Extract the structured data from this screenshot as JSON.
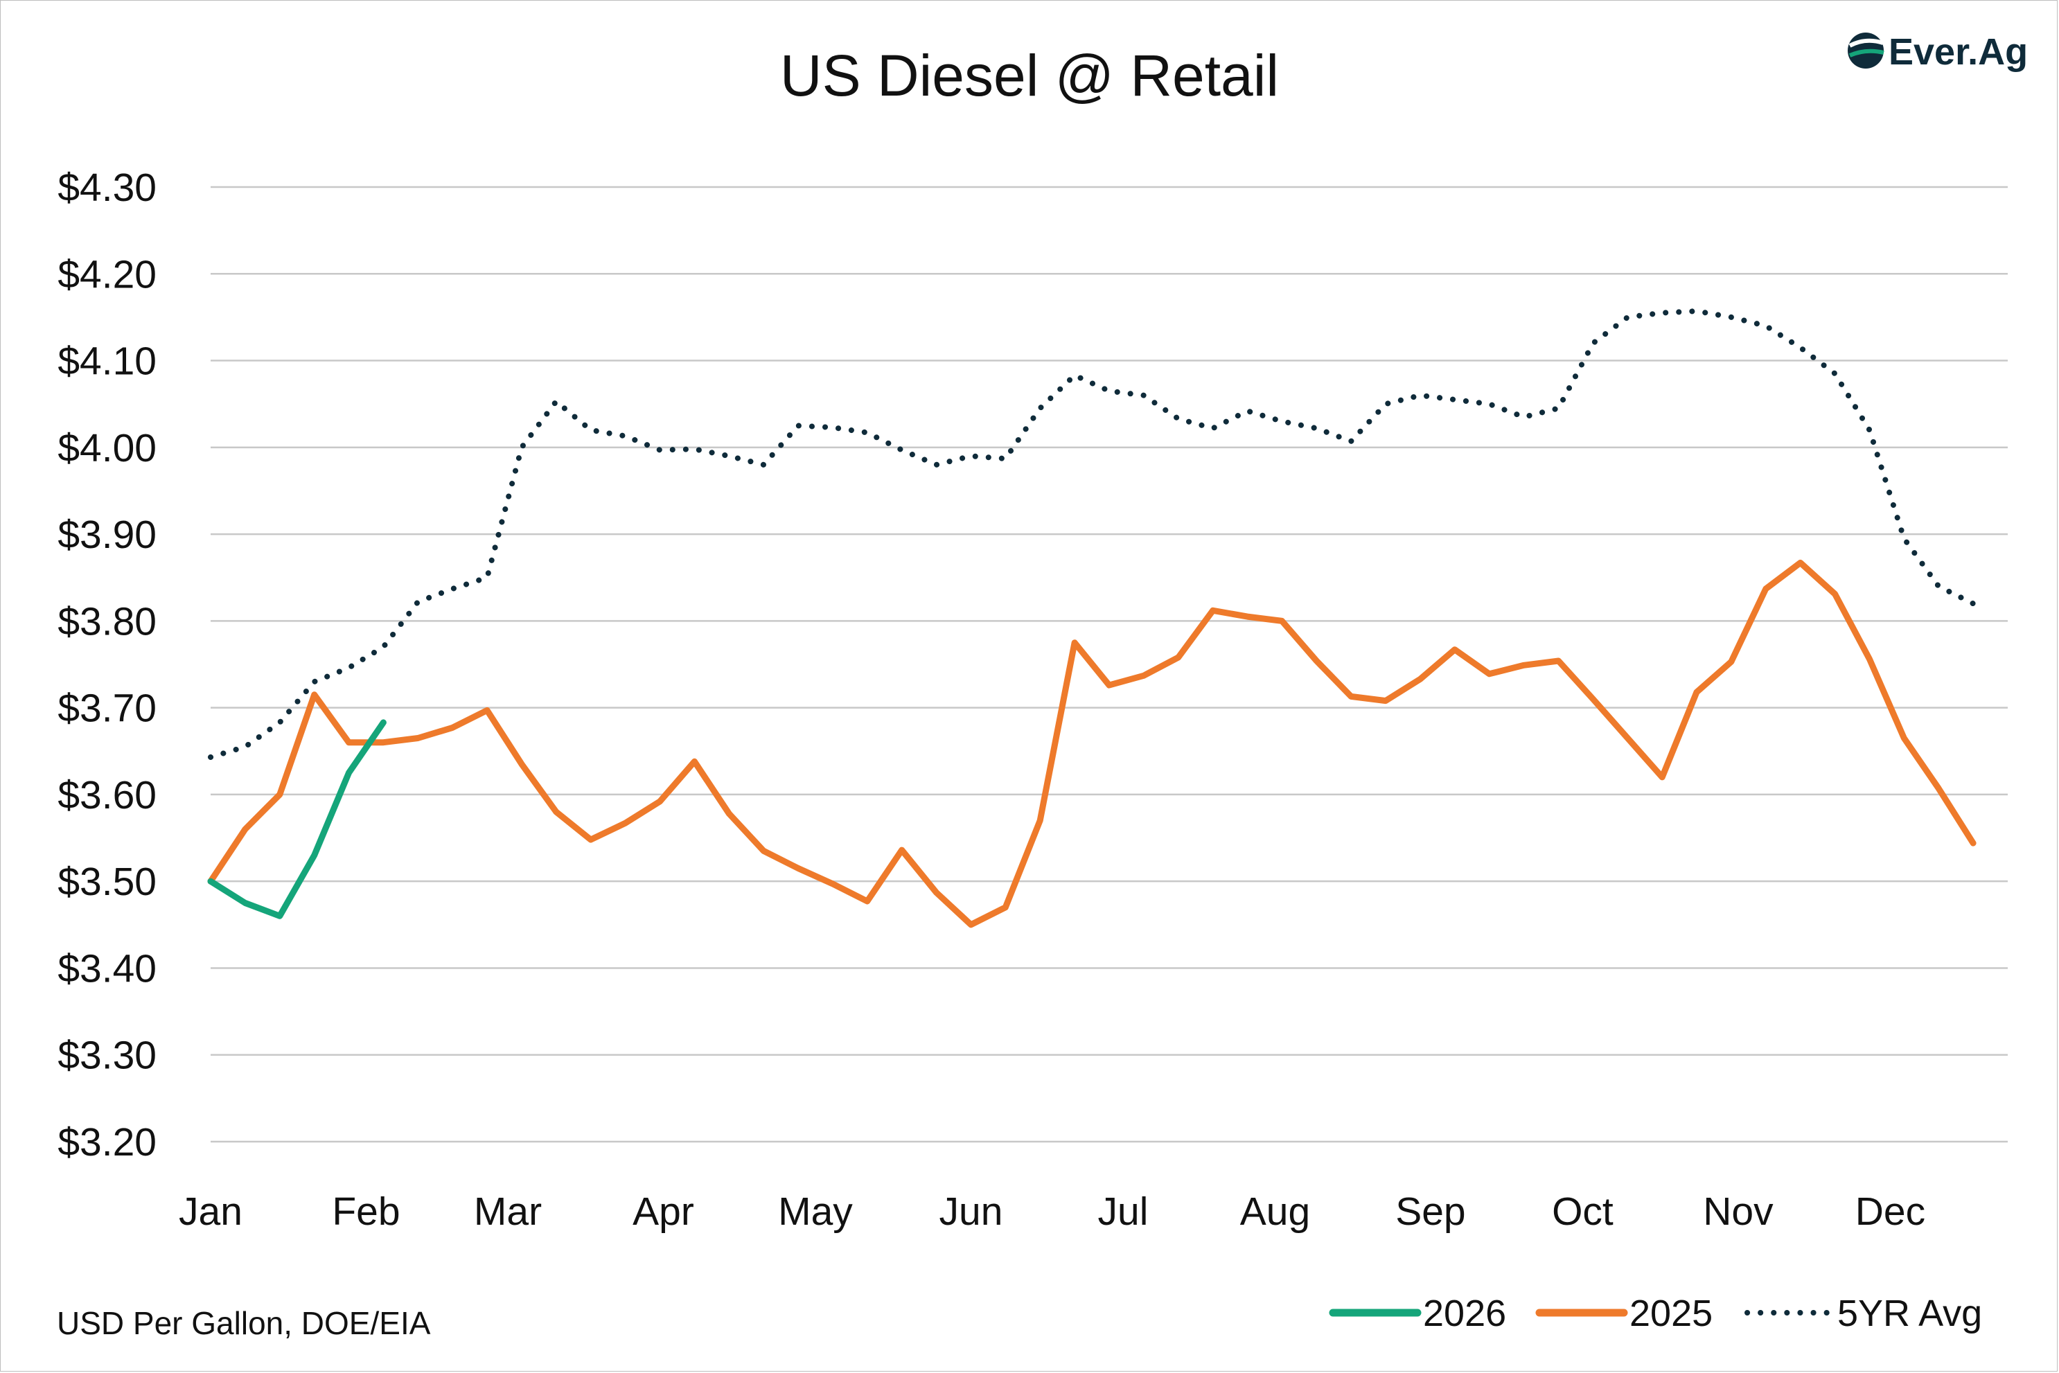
{
  "logo": {
    "text": "Ever.Ag",
    "colors": {
      "dark": "#0f2b3a",
      "green": "#15a57a"
    }
  },
  "source_note": "USD Per Gallon, DOE/EIA",
  "chart_data": {
    "type": "line",
    "title": "US Diesel @ Retail",
    "xlabel": "",
    "ylabel": "",
    "ylim": [
      3.2,
      4.3
    ],
    "yticks": [
      {
        "value": 4.3,
        "label": "$4.30"
      },
      {
        "value": 4.2,
        "label": "$4.20"
      },
      {
        "value": 4.1,
        "label": "$4.10"
      },
      {
        "value": 4.0,
        "label": "$4.00"
      },
      {
        "value": 3.9,
        "label": "$3.90"
      },
      {
        "value": 3.8,
        "label": "$3.80"
      },
      {
        "value": 3.7,
        "label": "$3.70"
      },
      {
        "value": 3.6,
        "label": "$3.60"
      },
      {
        "value": 3.5,
        "label": "$3.50"
      },
      {
        "value": 3.4,
        "label": "$3.40"
      },
      {
        "value": 3.3,
        "label": "$3.30"
      },
      {
        "value": 3.2,
        "label": "$3.20"
      }
    ],
    "x_axis": {
      "unit": "week of year",
      "range": [
        1,
        53
      ],
      "months": [
        {
          "label": "Jan",
          "week": 1
        },
        {
          "label": "Feb",
          "week": 5.5
        },
        {
          "label": "Mar",
          "week": 9.6
        },
        {
          "label": "Apr",
          "week": 14.1
        },
        {
          "label": "May",
          "week": 18.5
        },
        {
          "label": "Jun",
          "week": 23.0
        },
        {
          "label": "Jul",
          "week": 27.4
        },
        {
          "label": "Aug",
          "week": 31.8
        },
        {
          "label": "Sep",
          "week": 36.3
        },
        {
          "label": "Oct",
          "week": 40.7
        },
        {
          "label": "Nov",
          "week": 45.2
        },
        {
          "label": "Dec",
          "week": 49.6
        }
      ]
    },
    "grid": true,
    "legend": "bottom-right",
    "series": [
      {
        "name": "2026",
        "color": "#15a57a",
        "style": "solid",
        "values": [
          3.5,
          3.475,
          3.46,
          3.53,
          3.625,
          3.683
        ]
      },
      {
        "name": "2025",
        "color": "#ee7a2b",
        "style": "solid",
        "values": [
          3.5,
          3.56,
          3.6,
          3.715,
          3.66,
          3.66,
          3.665,
          3.677,
          3.697,
          3.635,
          3.58,
          3.548,
          3.567,
          3.592,
          3.638,
          3.578,
          3.535,
          3.515,
          3.497,
          3.477,
          3.536,
          3.487,
          3.45,
          3.47,
          3.57,
          3.775,
          3.726,
          3.737,
          3.758,
          3.812,
          3.805,
          3.8,
          3.754,
          3.713,
          3.708,
          3.733,
          3.767,
          3.739,
          3.749,
          3.754,
          3.71,
          3.665,
          3.62,
          3.718,
          3.753,
          3.837,
          3.867,
          3.831,
          3.756,
          3.665,
          3.607,
          3.544
        ]
      },
      {
        "name": "5YR Avg",
        "color": "#0f2b3a",
        "style": "dotted",
        "values": [
          3.643,
          3.655,
          3.683,
          3.73,
          3.746,
          3.77,
          3.822,
          3.837,
          3.85,
          4.0,
          4.053,
          4.02,
          4.013,
          3.997,
          3.998,
          3.99,
          3.98,
          4.025,
          4.023,
          4.017,
          3.997,
          3.98,
          3.99,
          3.987,
          4.045,
          4.083,
          4.065,
          4.06,
          4.033,
          4.022,
          4.042,
          4.03,
          4.022,
          4.007,
          4.05,
          4.06,
          4.055,
          4.05,
          4.035,
          4.045,
          4.12,
          4.15,
          4.155,
          4.157,
          4.15,
          4.14,
          4.115,
          4.085,
          4.02,
          3.895,
          3.84,
          3.82
        ]
      }
    ]
  }
}
